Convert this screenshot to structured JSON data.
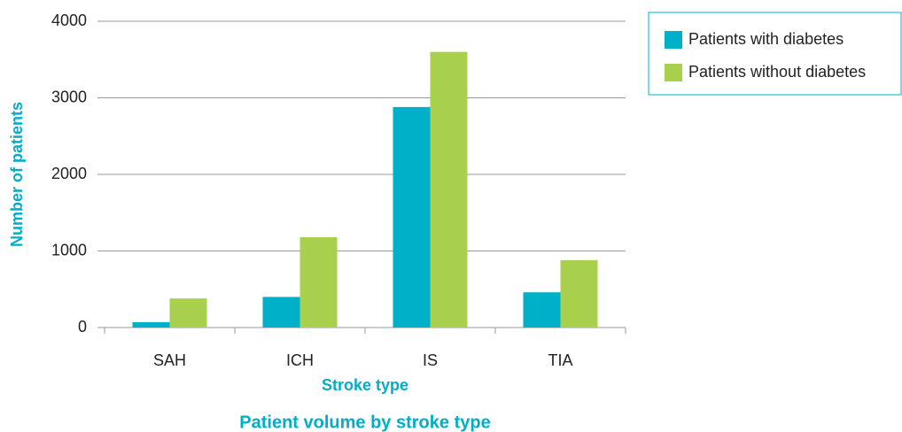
{
  "chart_data": {
    "type": "bar",
    "title": "Patient volume by stroke type",
    "xlabel": "Stroke type",
    "ylabel": "Number of patients",
    "categories": [
      "SAH",
      "ICH",
      "IS",
      "TIA"
    ],
    "series": [
      {
        "name": "Patients with diabetes",
        "color": "#00b0c8",
        "values": [
          70,
          400,
          2880,
          460
        ]
      },
      {
        "name": "Patients without diabetes",
        "color": "#a8d04c",
        "values": [
          380,
          1180,
          3600,
          880
        ]
      }
    ],
    "ylim": [
      0,
      4000
    ],
    "yticks": [
      0,
      1000,
      2000,
      3000,
      4000
    ],
    "grid": true,
    "legend": "top-right"
  }
}
